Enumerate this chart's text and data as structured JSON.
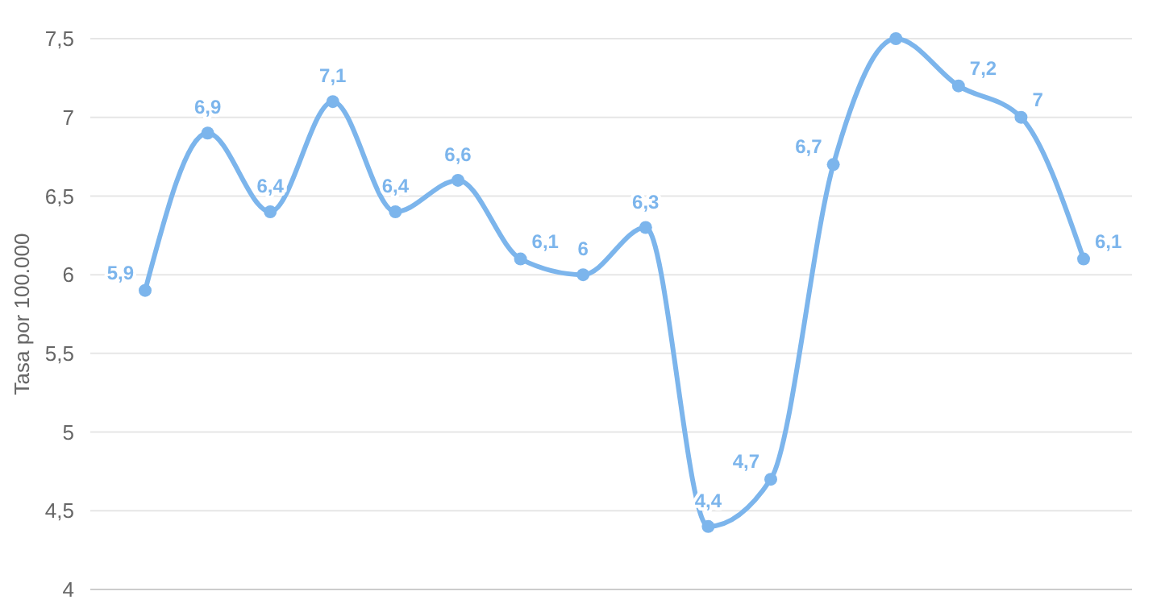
{
  "chart_data": {
    "type": "line",
    "ylabel": "Tasa por 100.000",
    "categories": [
      null,
      null,
      null,
      null,
      null,
      null,
      null,
      null,
      null,
      null,
      null,
      null,
      null,
      null,
      null,
      null
    ],
    "series": [
      {
        "color": "#7cb5ec",
        "values": [
          5.9,
          6.9,
          6.4,
          7.1,
          6.4,
          6.6,
          6.1,
          6,
          6.3,
          4.4,
          4.7,
          6.7,
          7.5,
          7.2,
          7,
          6.1
        ],
        "value_labels": [
          "5,9",
          "6,9",
          "6,4",
          "7,1",
          "6,4",
          "6,6",
          "6,1",
          "6",
          "6,3",
          "4,4",
          "4,7",
          "6,7",
          null,
          "7,2",
          "7",
          "6,1"
        ]
      }
    ],
    "ylim": [
      4,
      7.5
    ],
    "yticks": [
      {
        "value": 4,
        "label": "4"
      },
      {
        "value": 4.5,
        "label": "4,5"
      },
      {
        "value": 5,
        "label": "5"
      },
      {
        "value": 5.5,
        "label": "5,5"
      },
      {
        "value": 6,
        "label": "6"
      },
      {
        "value": 6.5,
        "label": "6,5"
      },
      {
        "value": 7,
        "label": "7"
      },
      {
        "value": 7.5,
        "label": "7,5"
      }
    ],
    "grid": "y",
    "marker": "circle",
    "line_style": "solid"
  }
}
